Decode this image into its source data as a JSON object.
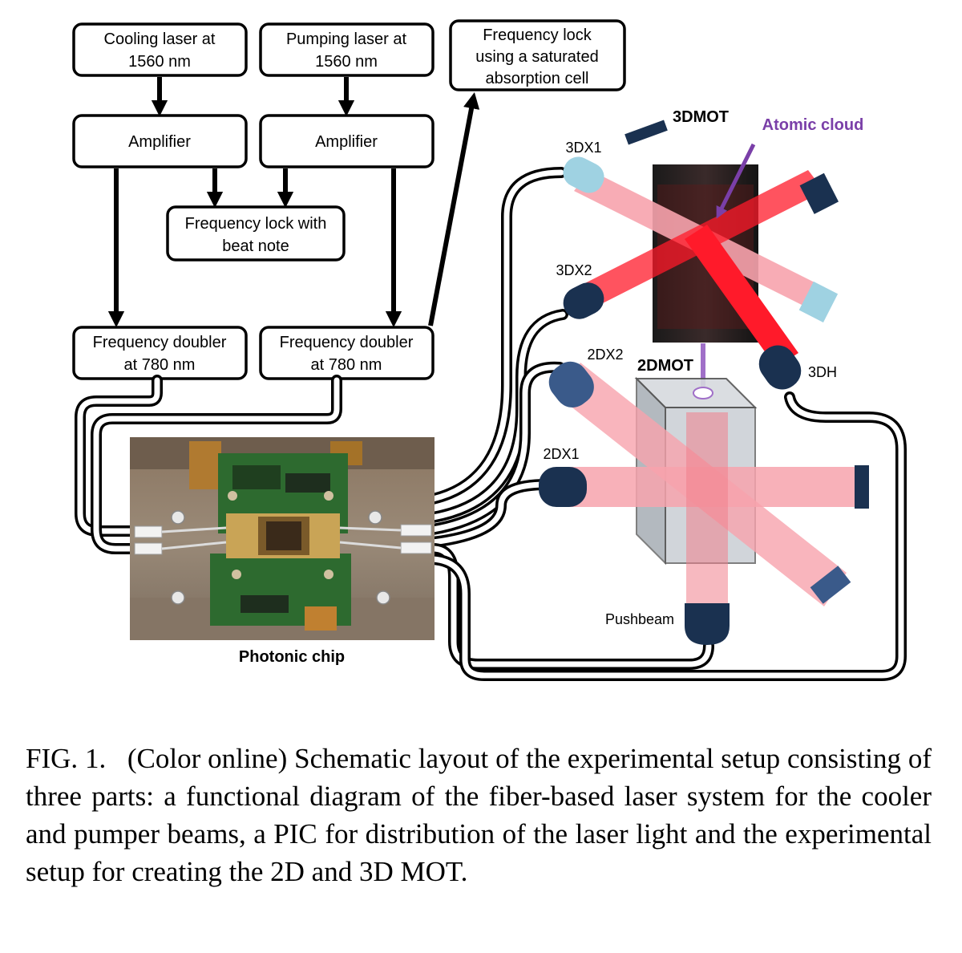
{
  "boxes": {
    "cooling_laser": [
      "Cooling laser at",
      "1560 nm"
    ],
    "pumping_laser": [
      "Pumping laser at",
      "1560 nm"
    ],
    "frequency_lock_sat": [
      "Frequency lock",
      "using a saturated",
      "absorption cell"
    ],
    "amplifier_left": "Amplifier",
    "amplifier_right": "Amplifier",
    "frequency_lock_beat": [
      "Frequency lock with",
      "beat note"
    ],
    "doubler_left": [
      "Frequency doubler",
      "at 780 nm"
    ],
    "doubler_right": [
      "Frequency doubler",
      "at 780 nm"
    ]
  },
  "labels": {
    "photonic_chip": "Photonic chip",
    "mot3d": "3DMOT",
    "mot2d": "2DMOT",
    "atomic_cloud": "Atomic cloud",
    "x3d1": "3DX1",
    "x3d2": "3DX2",
    "h3d": "3DH",
    "x2d2": "2DX2",
    "x2d1": "2DX1",
    "pushbeam": "Pushbeam"
  },
  "colors": {
    "beam_red": "#ff1a2a",
    "beam_pink": "#f7a3ad",
    "collimator_dark": "#1a3150",
    "collimator_light": "#9fd2e2",
    "cloud_purple": "#7a3fa8",
    "pcb_green": "#2d6a2f"
  },
  "caption": {
    "figure": "FIG. 1.",
    "text": "(Color online) Schematic layout of the experimental setup consisting of three parts: a functional diagram of the fiber-based laser system for the cooler and pumper beams, a PIC for distribution of the laser light and the experimental setup for creating the 2D and 3D MOT."
  }
}
